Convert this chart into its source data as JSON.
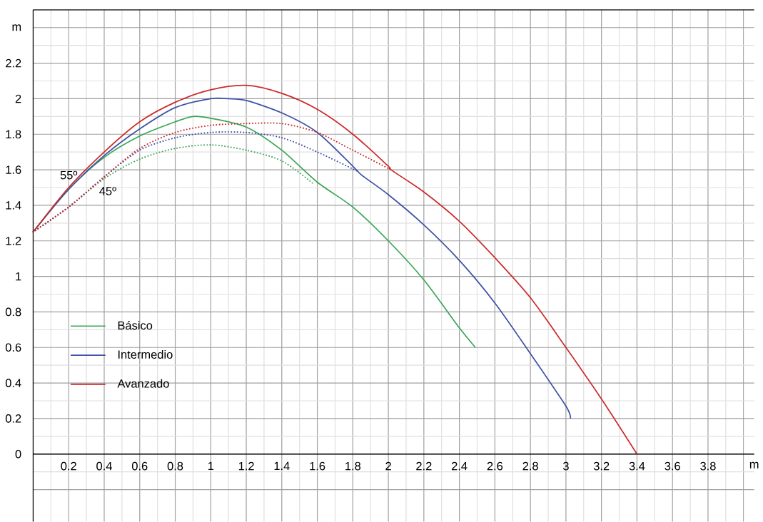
{
  "chart_data": {
    "type": "line",
    "xlabel": "m",
    "ylabel": "m",
    "xlim": [
      0,
      4.06
    ],
    "ylim": [
      -0.38,
      2.5
    ],
    "xticks": [
      {
        "value": 0,
        "label": null
      },
      0.2,
      0.4,
      0.6,
      0.8,
      1,
      1.2,
      1.4,
      1.6,
      1.8,
      2,
      2.2,
      2.4,
      2.6,
      2.8,
      3,
      3.2,
      3.4,
      3.6,
      3.8,
      {
        "value": 4,
        "label": null
      }
    ],
    "yticks": [
      {
        "value": -0.2,
        "label": null
      },
      0,
      0.2,
      0.4,
      0.6,
      0.8,
      1,
      1.2,
      1.4,
      1.6,
      1.8,
      2,
      2.2,
      {
        "value": 2.4,
        "label": null
      }
    ],
    "grid": true,
    "legend": "bottom left",
    "annotations": [
      "55º",
      "45º"
    ],
    "series": [
      {
        "name": "Básico",
        "color": "#3aa655",
        "line_style": "solid",
        "x": [
          0,
          0.2,
          0.4,
          0.6,
          0.8,
          0.9,
          1.0,
          1.2,
          1.4,
          1.6,
          1.8,
          2.0,
          2.2,
          2.4,
          2.49
        ],
        "values": [
          1.25,
          1.49,
          1.67,
          1.79,
          1.87,
          1.9,
          1.89,
          1.84,
          1.71,
          1.53,
          1.39,
          1.2,
          0.98,
          0.71,
          0.6
        ]
      },
      {
        "name": "Intermedio",
        "color": "#3f51a5",
        "line_style": "solid",
        "x": [
          0,
          0.2,
          0.4,
          0.6,
          0.8,
          1.0,
          1.1,
          1.2,
          1.4,
          1.6,
          1.8,
          1.85,
          2.0,
          2.2,
          2.4,
          2.6,
          2.8,
          3.0,
          3.025
        ],
        "values": [
          1.25,
          1.49,
          1.68,
          1.83,
          1.95,
          2.0,
          2.0,
          1.99,
          1.92,
          1.81,
          1.62,
          1.57,
          1.46,
          1.29,
          1.09,
          0.85,
          0.565,
          0.27,
          0.2
        ]
      },
      {
        "name": "Avanzado",
        "color": "#cc2a2a",
        "line_style": "solid",
        "x": [
          0,
          0.2,
          0.4,
          0.6,
          0.8,
          1.0,
          1.2,
          1.4,
          1.6,
          1.8,
          2.0,
          2.015,
          2.2,
          2.4,
          2.6,
          2.8,
          3.0,
          3.2,
          3.4
        ],
        "values": [
          1.25,
          1.5,
          1.7,
          1.87,
          1.98,
          2.05,
          2.075,
          2.03,
          1.94,
          1.8,
          1.62,
          1.6,
          1.475,
          1.31,
          1.105,
          0.88,
          0.6,
          0.31,
          0
        ]
      },
      {
        "color": "#3aa655",
        "line_style": "dotted",
        "x": [
          0,
          0.2,
          0.4,
          0.6,
          0.8,
          1.0,
          1.2,
          1.4,
          1.58
        ],
        "values": [
          1.25,
          1.39,
          1.55,
          1.66,
          1.72,
          1.74,
          1.71,
          1.65,
          1.52
        ]
      },
      {
        "color": "#3f51a5",
        "line_style": "dotted",
        "x": [
          0,
          0.2,
          0.4,
          0.6,
          0.8,
          1.0,
          1.2,
          1.4,
          1.6,
          1.83
        ],
        "values": [
          1.25,
          1.39,
          1.56,
          1.71,
          1.78,
          1.81,
          1.81,
          1.78,
          1.7,
          1.59
        ]
      },
      {
        "color": "#cc2a2a",
        "line_style": "dotted",
        "x": [
          0,
          0.2,
          0.4,
          0.6,
          0.8,
          1.0,
          1.2,
          1.4,
          1.6,
          1.8,
          2.015
        ],
        "values": [
          1.25,
          1.39,
          1.56,
          1.72,
          1.81,
          1.85,
          1.86,
          1.86,
          1.81,
          1.71,
          1.6
        ]
      }
    ]
  }
}
